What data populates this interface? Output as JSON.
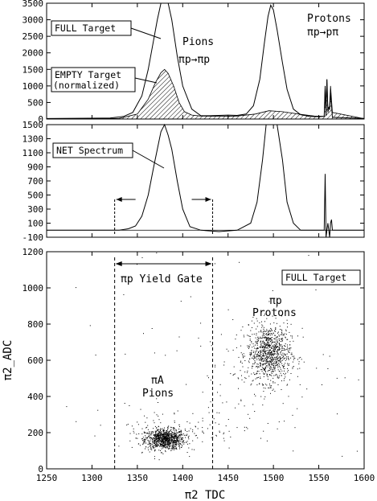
{
  "chart_data": [
    {
      "type": "line",
      "panel": "top",
      "xlim": [
        1250,
        1600
      ],
      "ylim": [
        0,
        3500
      ],
      "yticks": [
        "0",
        "500",
        "1000",
        "1500",
        "2000",
        "2500",
        "3000",
        "3500"
      ],
      "series": [
        {
          "name": "FULL Target",
          "x": [
            1250,
            1320,
            1335,
            1345,
            1355,
            1362,
            1368,
            1372,
            1376,
            1380,
            1384,
            1388,
            1394,
            1400,
            1410,
            1420,
            1430,
            1440,
            1450,
            1460,
            1470,
            1478,
            1485,
            1490,
            1494,
            1497,
            1500,
            1504,
            1510,
            1515,
            1522,
            1530,
            1540,
            1550,
            1556,
            1557,
            1558,
            1559,
            1560,
            1561,
            1562,
            1563,
            1565,
            1600
          ],
          "y": [
            15,
            30,
            80,
            200,
            700,
            1500,
            2400,
            3000,
            3550,
            3800,
            3500,
            3000,
            1900,
            1000,
            300,
            100,
            100,
            110,
            120,
            110,
            150,
            400,
            1200,
            2300,
            3100,
            3440,
            3300,
            2700,
            1700,
            900,
            300,
            130,
            80,
            70,
            80,
            1000,
            100,
            1200,
            300,
            350,
            300,
            800,
            50,
            20
          ]
        },
        {
          "name": "EMPTY Target (normalized)",
          "x": [
            1250,
            1330,
            1350,
            1362,
            1370,
            1376,
            1380,
            1384,
            1390,
            1396,
            1402,
            1410,
            1420,
            1440,
            1460,
            1480,
            1495,
            1510,
            1530,
            1545,
            1556,
            1557,
            1558,
            1559,
            1560,
            1562,
            1563,
            1565,
            1600
          ],
          "y": [
            10,
            20,
            150,
            600,
            1100,
            1400,
            1500,
            1380,
            1000,
            500,
            220,
            120,
            90,
            80,
            90,
            150,
            250,
            220,
            140,
            90,
            80,
            1000,
            100,
            1200,
            200,
            400,
            1000,
            200,
            10
          ]
        }
      ],
      "annotations": [
        "FULL Target",
        "EMPTY Target",
        "(normalized)",
        "Pions",
        "πp→πp",
        "Protons",
        "πp→pπ"
      ]
    },
    {
      "type": "line",
      "panel": "middle",
      "xlim": [
        1250,
        1600
      ],
      "ylim": [
        -100,
        1500
      ],
      "yticks": [
        "-100",
        "100",
        "300",
        "500",
        "700",
        "900",
        "1100",
        "1300",
        "1500"
      ],
      "series": [
        {
          "name": "NET Spectrum",
          "x": [
            1250,
            1330,
            1340,
            1348,
            1355,
            1362,
            1368,
            1372,
            1376,
            1380,
            1384,
            1388,
            1394,
            1400,
            1408,
            1420,
            1440,
            1460,
            1475,
            1482,
            1488,
            1492,
            1496,
            1500,
            1504,
            1510,
            1515,
            1522,
            1530,
            1550,
            1556,
            1557,
            1558,
            1559,
            1560,
            1561,
            1562,
            1563,
            1564,
            1565,
            1600
          ],
          "y": [
            0,
            0,
            20,
            60,
            200,
            500,
            900,
            1150,
            1400,
            1500,
            1350,
            1150,
            700,
            300,
            50,
            0,
            -20,
            0,
            100,
            400,
            1000,
            1500,
            1500,
            1500,
            1500,
            1000,
            400,
            100,
            0,
            0,
            0,
            800,
            -100,
            0,
            100,
            0,
            -100,
            100,
            150,
            0,
            0
          ]
        }
      ],
      "gate_arrows": [
        1325,
        1433
      ],
      "annotations": [
        "NET Spectrum"
      ]
    },
    {
      "type": "scatter",
      "panel": "bottom",
      "xlim": [
        1250,
        1600
      ],
      "ylim": [
        0,
        1200
      ],
      "xticks": [
        "1250",
        "1300",
        "1350",
        "1400",
        "1450",
        "1500",
        "1550",
        "1600"
      ],
      "yticks": [
        "0",
        "200",
        "400",
        "600",
        "800",
        "1000",
        "1200"
      ],
      "xlabel": "π2_TDC",
      "ylabel": "π2_ADC",
      "clusters": [
        {
          "cx": 1380,
          "cy": 165,
          "sx": 11,
          "sy": 28,
          "n": 900
        },
        {
          "cx": 1495,
          "cy": 640,
          "sx": 12,
          "sy": 80,
          "n": 900
        },
        {
          "cx": 1390,
          "cy": 220,
          "sx": 35,
          "sy": 60,
          "n": 120
        },
        {
          "cx": 1475,
          "cy": 500,
          "sx": 45,
          "sy": 180,
          "n": 110
        },
        {
          "cx": 1425,
          "cy": 600,
          "sx": 120,
          "sy": 350,
          "n": 60
        }
      ],
      "gate": [
        1325,
        1433
      ],
      "annotations": [
        "πp Yield Gate",
        "FULL Target",
        "πp",
        "Protons",
        "πA",
        "Pions"
      ]
    }
  ]
}
